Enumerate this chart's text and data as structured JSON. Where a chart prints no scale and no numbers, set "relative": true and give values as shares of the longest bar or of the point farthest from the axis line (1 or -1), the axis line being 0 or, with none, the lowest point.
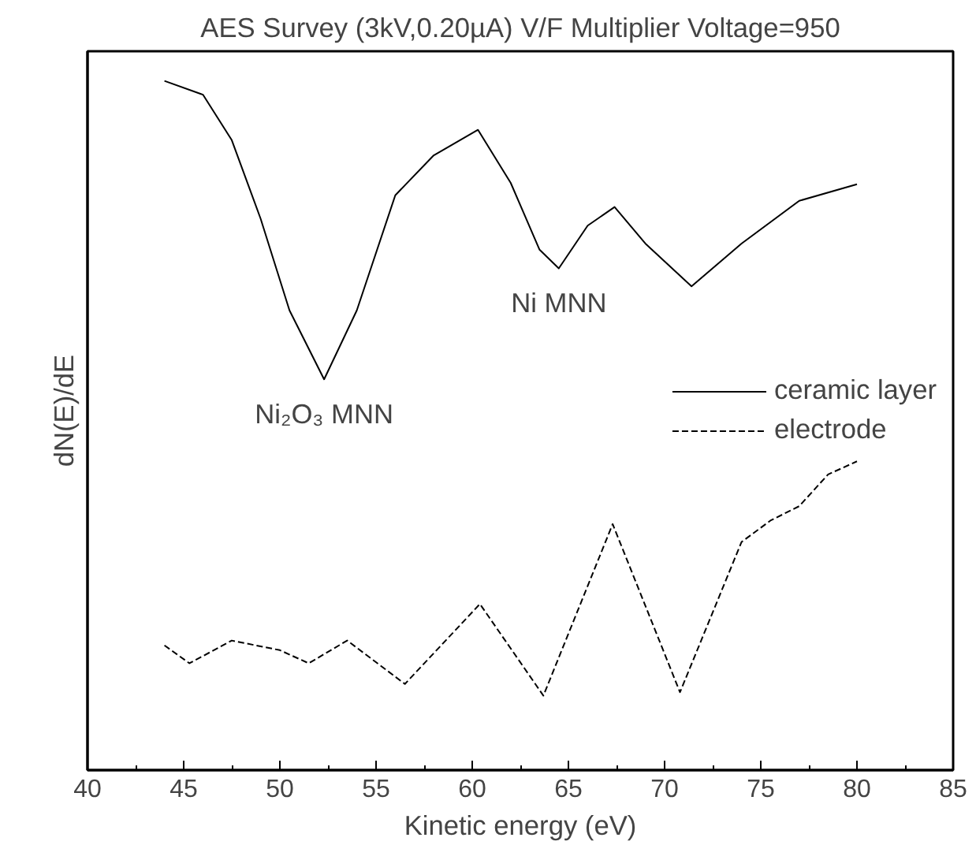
{
  "chart_data": {
    "type": "line",
    "title": "AES Survey (3kV,0.20µA) V/F Multiplier Voltage=950",
    "xlabel": "Kinetic energy (eV)",
    "ylabel": "dN(E)/dE",
    "relative": true,
    "xlim": [
      40,
      85
    ],
    "xticks": [
      40,
      45,
      50,
      55,
      60,
      65,
      70,
      75,
      80,
      85
    ],
    "legend": "right",
    "grid": false,
    "series": [
      {
        "name": "ceramic layer",
        "color": "#000000",
        "line_style": "solid",
        "x": [
          44,
          46,
          47.5,
          49,
          50.5,
          52.3,
          54,
          56,
          58,
          60.3,
          62,
          63.5,
          64.5,
          66,
          67.4,
          69,
          71.4,
          74,
          77,
          80
        ],
        "values": [
          1.0,
          0.98,
          0.914,
          0.8,
          0.667,
          0.567,
          0.667,
          0.834,
          0.892,
          0.929,
          0.852,
          0.755,
          0.728,
          0.79,
          0.817,
          0.764,
          0.702,
          0.764,
          0.826,
          0.85
        ]
      },
      {
        "name": "electrode",
        "color": "#000000",
        "line_style": "dashed",
        "x": [
          44,
          45.3,
          47.5,
          50,
          51.5,
          53.5,
          56.5,
          60.4,
          63.7,
          67.3,
          70.8,
          74,
          75.5,
          77,
          78.5,
          80
        ],
        "values": [
          0.181,
          0.155,
          0.188,
          0.174,
          0.155,
          0.188,
          0.125,
          0.241,
          0.108,
          0.357,
          0.113,
          0.331,
          0.362,
          0.383,
          0.429,
          0.448
        ]
      }
    ],
    "annotations": [
      {
        "text": "Ni₂O₃ MNN",
        "x": 52.3,
        "y": 0.567
      },
      {
        "text": "Ni MNN",
        "x": 64.5,
        "y": 0.728
      }
    ]
  }
}
